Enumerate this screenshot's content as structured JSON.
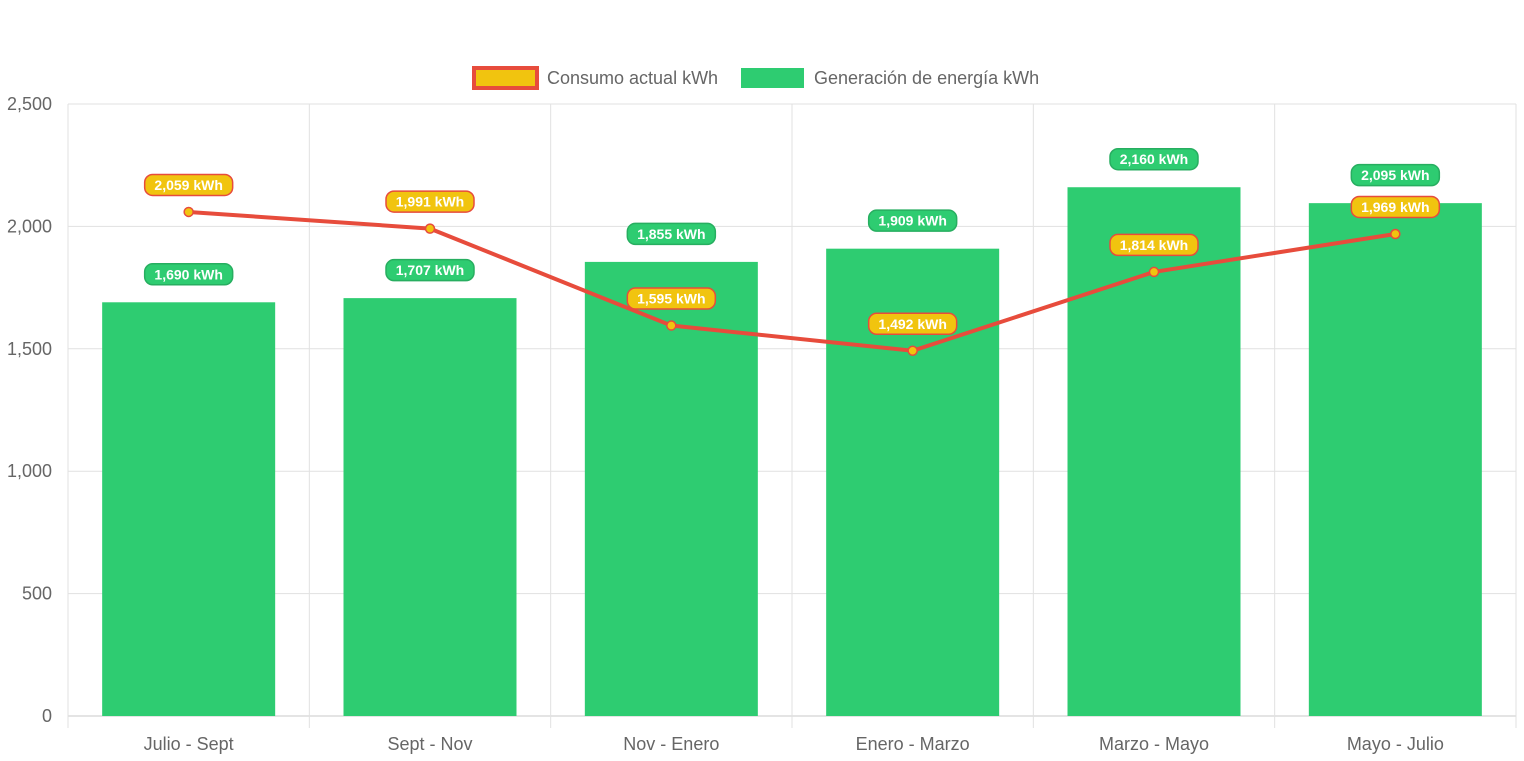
{
  "chart_data": {
    "type": "bar",
    "title": "",
    "xlabel": "",
    "ylabel": "",
    "categories": [
      "Julio - Sept",
      "Sept - Nov",
      "Nov - Enero",
      "Enero - Marzo",
      "Marzo - Mayo",
      "Mayo - Julio"
    ],
    "ylim": [
      0,
      2500
    ],
    "yticks": [
      0,
      500,
      1000,
      1500,
      2000,
      2500
    ],
    "ytick_labels": [
      "0",
      "500",
      "1,000",
      "1,500",
      "2,000",
      "2,500"
    ],
    "grid": true,
    "legend_position": "top-center",
    "series": [
      {
        "name": "Consumo actual kWh",
        "type": "line",
        "color": "#e74c3c",
        "fill_color": "#f1c40f",
        "values": [
          2059,
          1991,
          1595,
          1492,
          1814,
          1969
        ],
        "labels": [
          "2,059 kWh",
          "1,991 kWh",
          "1,595 kWh",
          "1,492 kWh",
          "1,814 kWh",
          "1,969 kWh"
        ]
      },
      {
        "name": "Generación de energía kWh",
        "type": "bar",
        "color": "#2ecc71",
        "label_border": "#27ae60",
        "values": [
          1690,
          1707,
          1855,
          1909,
          2160,
          2095
        ],
        "labels": [
          "1,690 kWh",
          "1,707 kWh",
          "1,855 kWh",
          "1,909 kWh",
          "2,160 kWh",
          "2,095 kWh"
        ]
      }
    ]
  }
}
